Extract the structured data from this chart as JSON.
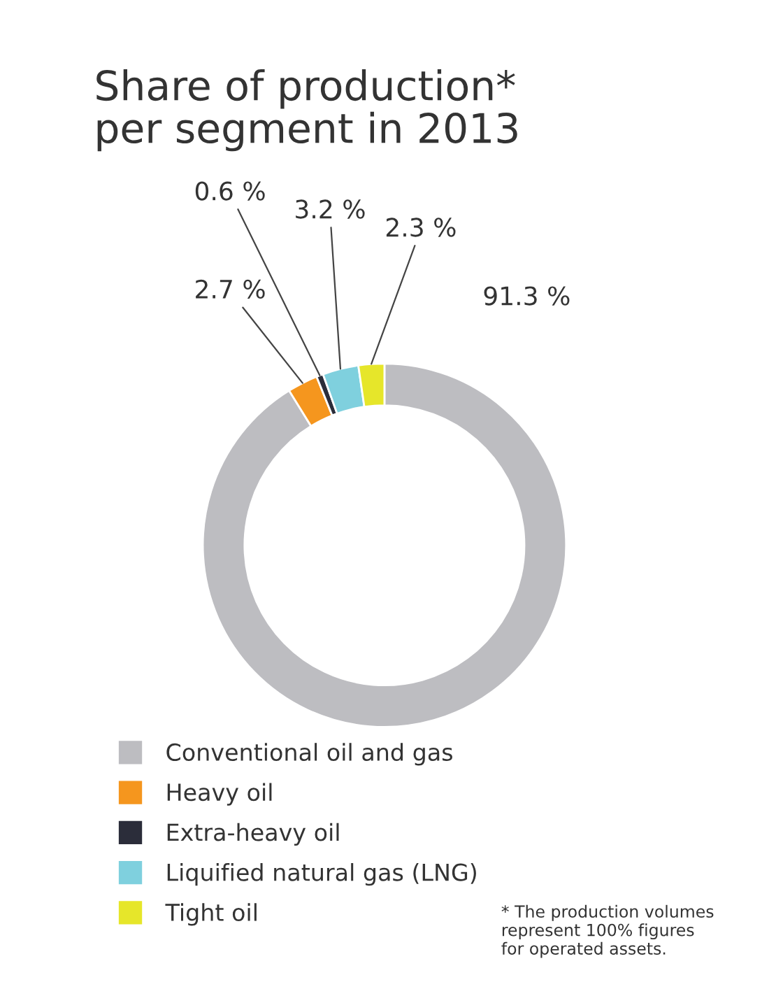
{
  "chart_data": {
    "type": "donut",
    "title": "Share of production*\nper segment in 2013",
    "categories": [
      "Conventional oil and gas",
      "Heavy oil",
      "Extra-heavy oil",
      "Liquified natural gas (LNG)",
      "Tight oil"
    ],
    "values": [
      91.3,
      2.7,
      0.6,
      3.2,
      2.3
    ],
    "colors": [
      "#bdbdc1",
      "#f5961e",
      "#2b2d3a",
      "#7fd0de",
      "#e6e62a"
    ],
    "value_labels": [
      "91.3 %",
      "2.7 %",
      "0.6 %",
      "3.2 %",
      "2.3 %"
    ],
    "legend": "bottom left",
    "annotations": [
      "* The production volumes\nrepresent 100% figures\nfor operated assets."
    ]
  }
}
